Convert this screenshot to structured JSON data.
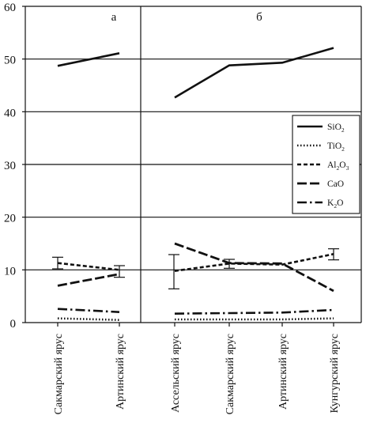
{
  "chart_data": [
    {
      "panel_label": "а",
      "type": "line",
      "categories": [
        "Сакмарский ярус",
        "Артинский ярус"
      ],
      "ylim": [
        0,
        60
      ],
      "yticks": [
        0,
        10,
        20,
        30,
        40,
        50,
        60
      ],
      "series": [
        {
          "key": "sio2",
          "values": [
            48.7,
            51.1
          ]
        },
        {
          "key": "tio2",
          "values": [
            0.8,
            0.5
          ]
        },
        {
          "key": "al2o3",
          "values": [
            11.3,
            10.0
          ]
        },
        {
          "key": "cao",
          "values": [
            7.0,
            9.2
          ]
        },
        {
          "key": "k2o",
          "values": [
            2.6,
            2.0
          ]
        }
      ],
      "error_bars": [
        {
          "category": "Сакмарский ярус",
          "low": 10.2,
          "high": 12.4
        },
        {
          "category": "Артинский ярус",
          "low": 8.6,
          "high": 10.8
        }
      ]
    },
    {
      "panel_label": "б",
      "type": "line",
      "categories": [
        "Ассельский ярус",
        "Сакмарский ярус",
        "Артинский ярус",
        "Кунгурский ярус"
      ],
      "ylim": [
        0,
        60
      ],
      "series": [
        {
          "key": "sio2",
          "values": [
            42.7,
            48.8,
            49.3,
            52.1
          ]
        },
        {
          "key": "tio2",
          "values": [
            0.6,
            0.6,
            0.6,
            0.8
          ]
        },
        {
          "key": "al2o3",
          "values": [
            9.8,
            11.2,
            11.0,
            13.0
          ]
        },
        {
          "key": "cao",
          "values": [
            15.0,
            11.3,
            11.2,
            6.0
          ]
        },
        {
          "key": "k2o",
          "values": [
            1.7,
            1.8,
            1.9,
            2.4
          ]
        }
      ],
      "error_bars": [
        {
          "category": "Ассельский ярус",
          "low": 6.4,
          "high": 12.9
        },
        {
          "category": "Сакмарский ярус",
          "low": 10.3,
          "high": 12.0
        },
        {
          "category": "Кунгурский ярус",
          "low": 11.9,
          "high": 14.0
        }
      ],
      "legend": {
        "placement": "right-middle",
        "entries": [
          {
            "key": "sio2",
            "main": "SiO",
            "subs": [
              {
                "t": "2",
                "after": ""
              }
            ]
          },
          {
            "key": "tio2",
            "main": "TiO",
            "subs": [
              {
                "t": "2",
                "after": ""
              }
            ]
          },
          {
            "key": "al2o3",
            "main": "Al",
            "subs": [
              {
                "t": "2",
                "after": "O"
              },
              {
                "t": "3",
                "after": ""
              }
            ]
          },
          {
            "key": "cao",
            "main": "CaO",
            "subs": []
          },
          {
            "key": "k2o",
            "main": "K",
            "subs": [
              {
                "t": "2",
                "after": "O"
              }
            ]
          }
        ]
      }
    }
  ],
  "line_styles": {
    "sio2": {
      "dash": "",
      "width": 2.6
    },
    "tio2": {
      "dash": "1.5 2.5",
      "width": 2.6
    },
    "al2o3": {
      "dash": "5 3",
      "width": 2.6
    },
    "cao": {
      "dash": "12 4",
      "width": 2.8
    },
    "k2o": {
      "dash": "12 4 2.5 4",
      "width": 2.6
    }
  },
  "colors": {
    "ink": "#111111"
  }
}
